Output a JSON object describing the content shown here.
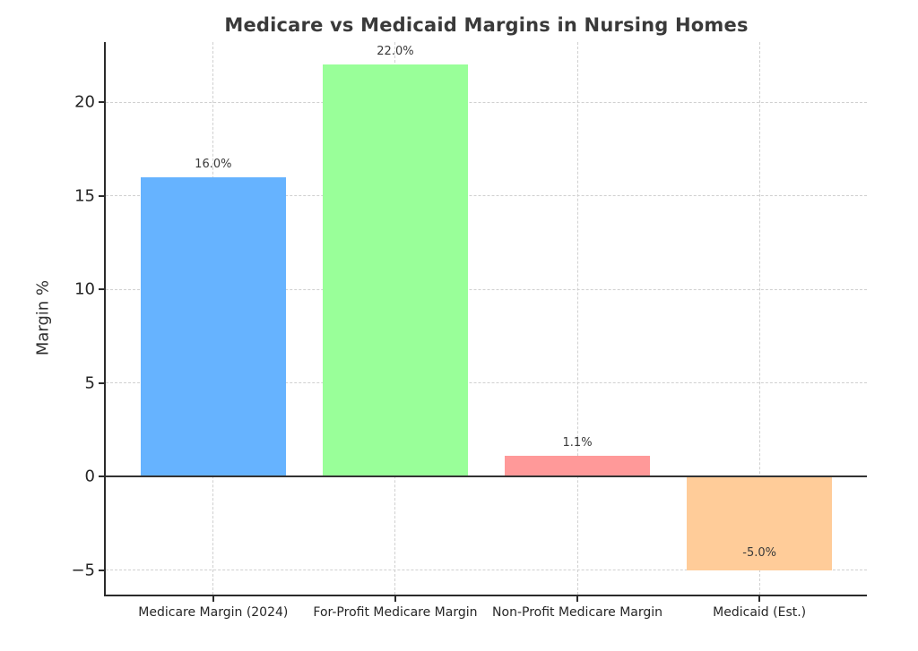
{
  "figure": {
    "background": "#ffffff"
  },
  "chart_data": {
    "type": "bar",
    "title": "Medicare vs Medicaid Margins in Nursing Homes",
    "xlabel": "",
    "ylabel": "Margin %",
    "categories": [
      "Medicare Margin (2024)",
      "For-Profit Medicare Margin",
      "Non-Profit Medicare Margin",
      "Medicaid (Est.)"
    ],
    "values": [
      16.0,
      22.0,
      1.1,
      -5.0
    ],
    "value_labels": [
      "16.0%",
      "22.0%",
      "1.1%",
      "-5.0%"
    ],
    "bar_colors": [
      "#66b3ff",
      "#99ff99",
      "#ff9999",
      "#ffcc99"
    ],
    "yticks": [
      -5,
      0,
      5,
      10,
      15,
      20
    ],
    "ytick_labels": [
      "−5",
      "0",
      "5",
      "10",
      "15",
      "20"
    ],
    "ylim": [
      -6.3,
      23.22
    ],
    "grid": "dashed, horizontal at yticks and vertical at bar centers",
    "legend": "none",
    "zero_line": true,
    "colors": {
      "text": "#2f2f2f",
      "tick_text": "#262626",
      "value_label_text": "#3a3a3a",
      "grid": "#d0d0d0",
      "axis": "#2b2b2b",
      "zero_line": "#333333"
    }
  }
}
